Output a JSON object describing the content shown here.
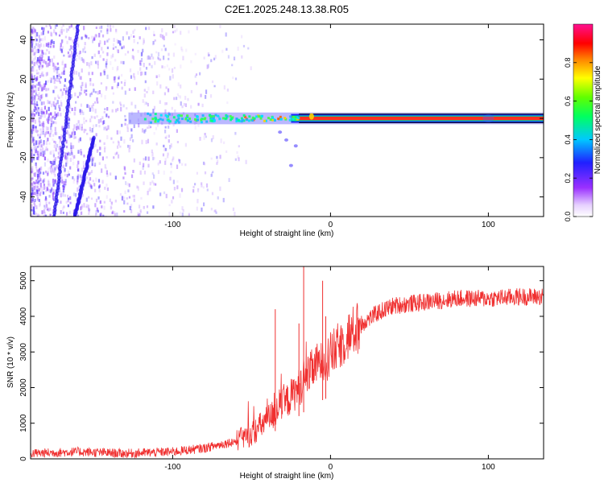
{
  "title": "C2E1.2025.248.13.38.R05",
  "colors": {
    "frame": "#000000",
    "snr_line": "#f03030",
    "carrier_band": "#f03030",
    "scatter_base": "#7a30ff"
  },
  "chart_data": [
    {
      "id": "spectrogram",
      "type": "heatmap",
      "xlabel": "Height of straight line (km)",
      "ylabel": "Frequency (Hz)",
      "xlim": [
        -190,
        135
      ],
      "ylim": [
        -50,
        48
      ],
      "xticks": [
        -100,
        0,
        100
      ],
      "xtick_labels": [
        "-100",
        "0",
        "100"
      ],
      "yticks": [
        -40,
        -20,
        0,
        20,
        40
      ],
      "ytick_labels": [
        "-40",
        "-20",
        "0",
        "20",
        "40"
      ],
      "carrier": {
        "frequency_hz": 0,
        "x_range_km": [
          -120,
          135
        ],
        "core_amplitude_after_x_km": -25
      },
      "scatter_streaks": [
        {
          "x_top_km": -160,
          "y_top_hz": 48,
          "x_bottom_km": -175,
          "y_bottom_hz": -50
        },
        {
          "x_top_km": -150,
          "y_top_hz": -10,
          "x_bottom_km": -162,
          "y_bottom_hz": -50
        }
      ],
      "noise_extent_km": [
        -190,
        -60
      ],
      "colorbar": {
        "label": "Normalized spectral amplitude",
        "range": [
          0,
          1
        ],
        "ticks": [
          0,
          0.2,
          0.4,
          0.6,
          0.8
        ],
        "tick_labels": [
          "0.0",
          "0.2",
          "0.4",
          "0.6",
          "0.8"
        ]
      }
    },
    {
      "id": "snr",
      "type": "line",
      "xlabel": "Height of straight line (km)",
      "ylabel": "SNR (10 * v/v)",
      "xlim": [
        -190,
        135
      ],
      "ylim": [
        0,
        5400
      ],
      "xticks": [
        -100,
        0,
        100
      ],
      "xtick_labels": [
        "-100",
        "0",
        "100"
      ],
      "yticks": [
        0,
        1000,
        2000,
        3000,
        4000,
        5000
      ],
      "ytick_labels": [
        "0",
        "1000",
        "2000",
        "3000",
        "4000",
        "5000"
      ],
      "series": [
        {
          "name": "SNR",
          "x": [
            -190,
            -160,
            -130,
            -100,
            -80,
            -70,
            -60,
            -50,
            -40,
            -30,
            -20,
            -10,
            0,
            10,
            20,
            30,
            40,
            60,
            80,
            100,
            120,
            135
          ],
          "y": [
            150,
            200,
            150,
            200,
            300,
            400,
            500,
            700,
            1100,
            1500,
            2000,
            2600,
            2900,
            3400,
            3800,
            4100,
            4300,
            4400,
            4500,
            4500,
            4550,
            4550
          ]
        }
      ],
      "spikes": [
        {
          "x": -35,
          "y": 4200
        },
        {
          "x": -20,
          "y": 3800
        },
        {
          "x": -17,
          "y": 5400
        },
        {
          "x": -5,
          "y": 5000
        },
        {
          "x": -3,
          "y": 4000
        }
      ]
    }
  ]
}
